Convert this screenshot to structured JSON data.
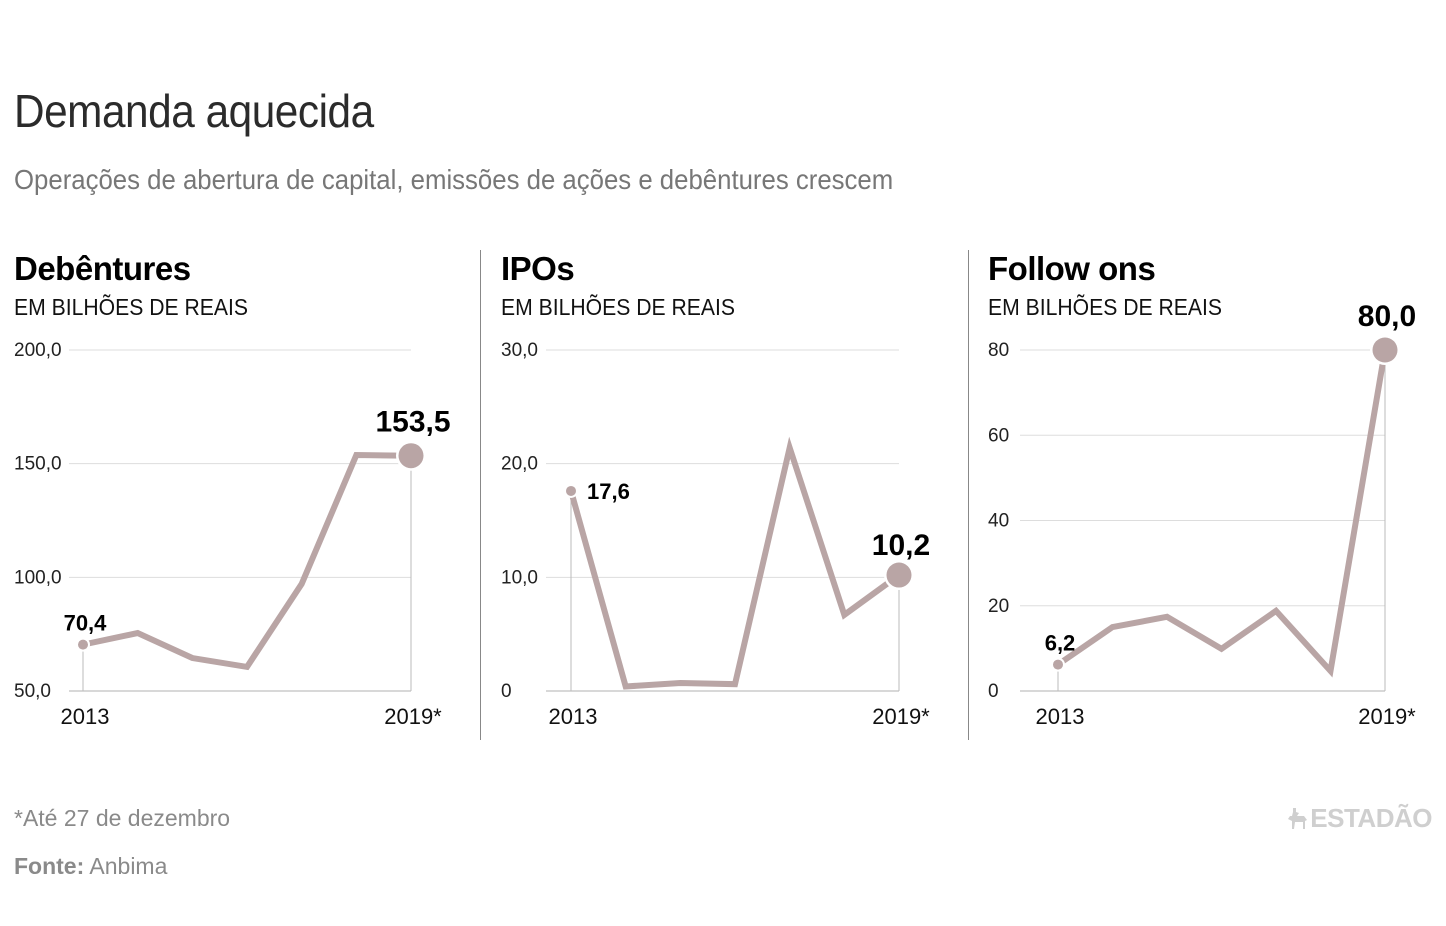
{
  "header": {
    "title": "Demanda aquecida",
    "subtitle": "Operações de abertura de capital, emissões de ações e debêntures crescem"
  },
  "colors": {
    "line": "#b9a5a5",
    "grid": "#dddddd",
    "axis": "#bbbbbb"
  },
  "chart_data": [
    {
      "type": "line",
      "title": "Debêntures",
      "ylabel": "EM BILHÕES DE REAIS",
      "x": [
        "2013",
        "2014",
        "2015",
        "2016",
        "2017",
        "2018",
        "2019*"
      ],
      "x_tick_labels": [
        "2013",
        "2019*"
      ],
      "values": [
        70.4,
        75.5,
        64.5,
        60.6,
        97.1,
        153.8,
        153.5
      ],
      "ylim": [
        50,
        200
      ],
      "y_ticks": [
        50,
        100,
        150,
        200
      ],
      "y_tick_labels": [
        "50,0",
        "100,0",
        "150,0",
        "200,0"
      ],
      "first_label": "70,4",
      "last_label": "153,5",
      "grid": true
    },
    {
      "type": "line",
      "title": "IPOs",
      "ylabel": "EM BILHÕES DE REAIS",
      "x": [
        "2013",
        "2014",
        "2015",
        "2016",
        "2017",
        "2018",
        "2019*"
      ],
      "x_tick_labels": [
        "2013",
        "2019*"
      ],
      "values": [
        17.6,
        0.4,
        0.7,
        0.6,
        21.4,
        6.7,
        10.2
      ],
      "ylim": [
        0,
        30
      ],
      "y_ticks": [
        0,
        10,
        20,
        30
      ],
      "y_tick_labels": [
        "0",
        "10,0",
        "20,0",
        "30,0"
      ],
      "first_label": "17,6",
      "last_label": "10,2",
      "grid": true
    },
    {
      "type": "line",
      "title": "Follow ons",
      "ylabel": "EM BILHÕES DE REAIS",
      "x": [
        "2013",
        "2014",
        "2015",
        "2016",
        "2017",
        "2018",
        "2019*"
      ],
      "x_tick_labels": [
        "2013",
        "2019*"
      ],
      "values": [
        6.2,
        15.0,
        17.4,
        9.9,
        18.8,
        4.7,
        80.0
      ],
      "ylim": [
        0,
        80
      ],
      "y_ticks": [
        0,
        20,
        40,
        60,
        80
      ],
      "y_tick_labels": [
        "0",
        "20",
        "40",
        "60",
        "80"
      ],
      "first_label": "6,2",
      "last_label": "80,0",
      "grid": true
    }
  ],
  "footer": {
    "footnote": "*Até 27 de dezembro",
    "source_label": "Fonte:",
    "source_value": "Anbima",
    "logo_text": "ESTADÃO",
    "logo_icon": "horseman-icon"
  }
}
